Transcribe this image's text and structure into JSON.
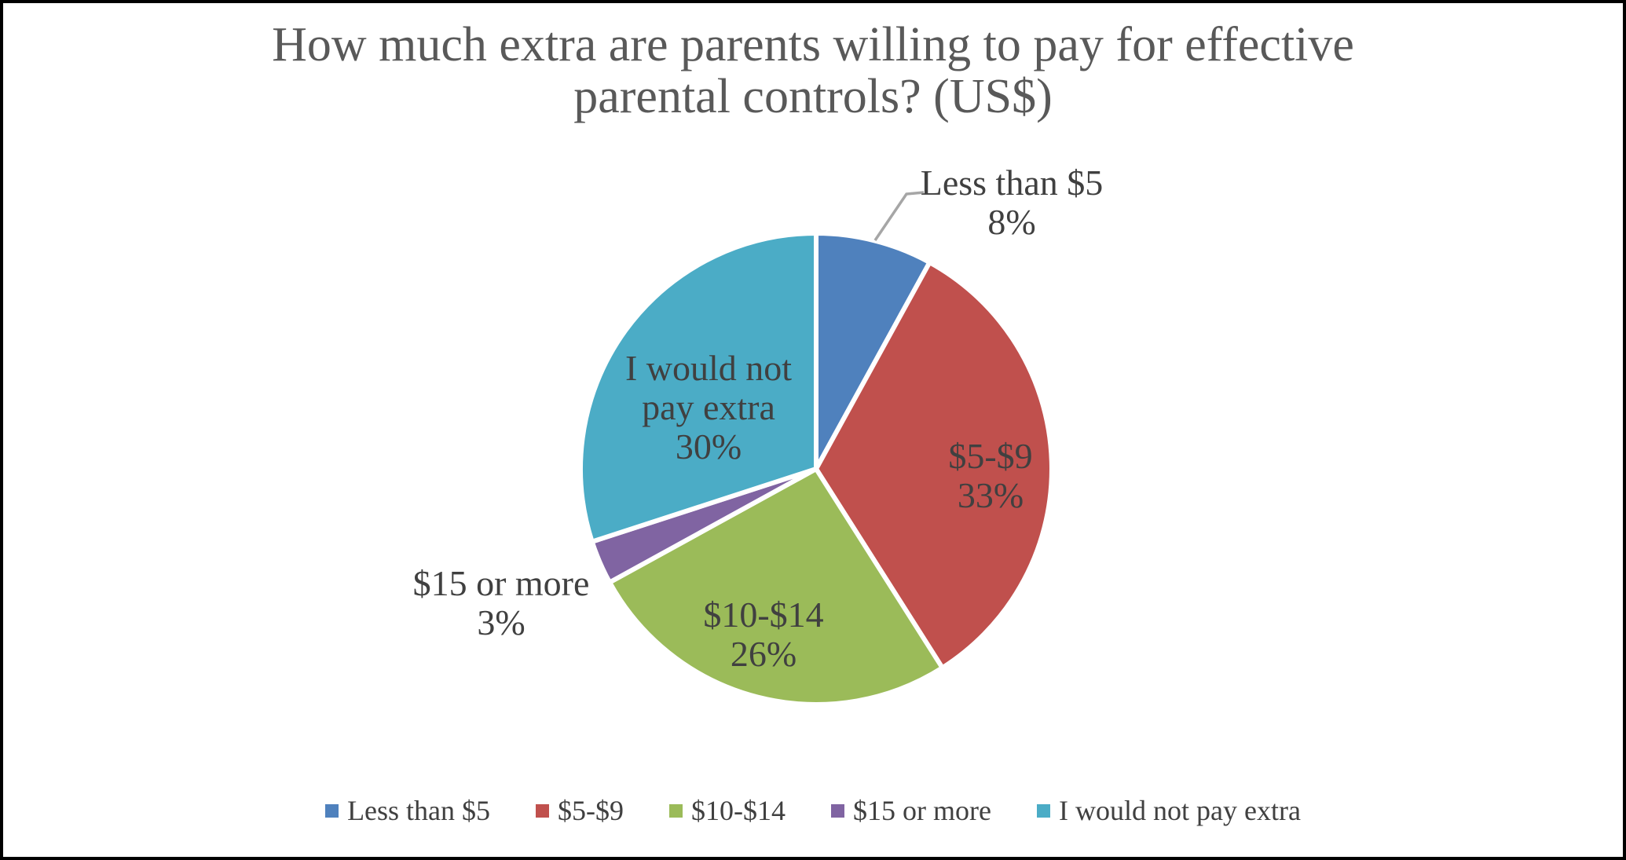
{
  "figure": {
    "title_lines": [
      "How much extra are parents willing to pay for effective",
      "parental controls? (US$)"
    ]
  },
  "chart_data": {
    "type": "pie",
    "title": "How much extra are parents willing to pay for effective parental controls? (US$)",
    "categories": [
      "Less than $5",
      "$5-$9",
      "$10-$14",
      "$15 or more",
      "I would not pay extra"
    ],
    "values": [
      8,
      33,
      26,
      3,
      30
    ],
    "unit": "%",
    "start_angle": "12-o'clock, clockwise",
    "colors": [
      "#4F81BD",
      "#C0504D",
      "#9BBB59",
      "#8064A2",
      "#4BACC6"
    ],
    "slice_labels": [
      {
        "lines": [
          "Less than $5"
        ],
        "pct": "8%",
        "placement": "outside",
        "leader": true
      },
      {
        "lines": [
          "$5-$9"
        ],
        "pct": "33%",
        "placement": "inside",
        "leader": false
      },
      {
        "lines": [
          "$10-$14"
        ],
        "pct": "26%",
        "placement": "inside",
        "leader": false
      },
      {
        "lines": [
          "$15 or more"
        ],
        "pct": "3%",
        "placement": "outside",
        "leader": false
      },
      {
        "lines": [
          "I would not",
          "pay extra"
        ],
        "pct": "30%",
        "placement": "inside",
        "leader": false
      }
    ],
    "legend": {
      "position": "bottom",
      "entries": [
        "Less than $5",
        "$5-$9",
        "$10-$14",
        "$15 or more",
        "I would not pay extra"
      ]
    }
  },
  "style": {
    "background": "#FFFFFF",
    "frame_border_color": "#000000",
    "title_color": "#595959",
    "label_color": "#404040",
    "legend_color": "#404040",
    "slice_border_color": "#FFFFFF",
    "leader_line_color": "#A6A6A6"
  }
}
